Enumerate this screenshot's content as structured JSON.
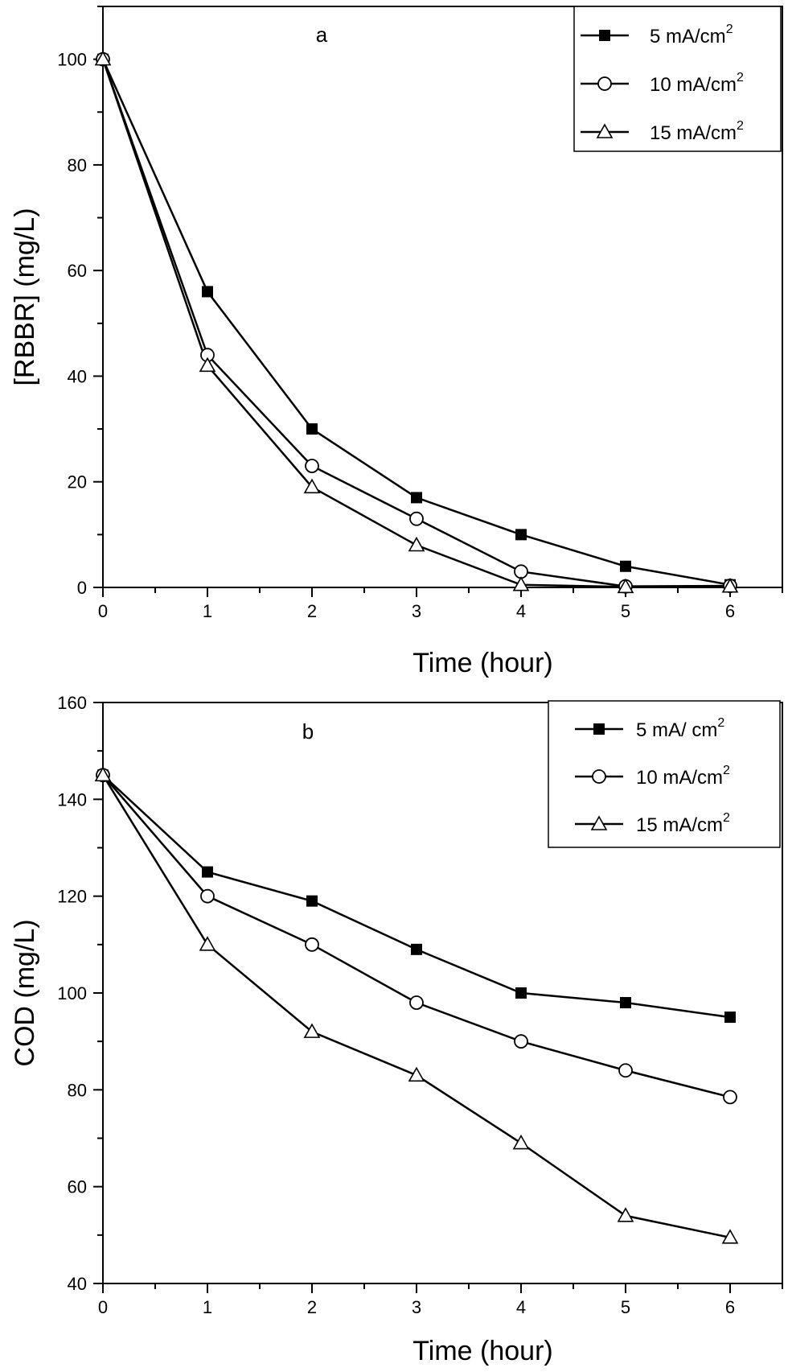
{
  "chart_data": [
    {
      "type": "line",
      "panel_label": "a",
      "xlabel": "Time (hour)",
      "ylabel": "[RBBR] (mg/L)",
      "x": [
        0,
        1,
        2,
        3,
        4,
        5,
        6
      ],
      "xlim": [
        0,
        6.5
      ],
      "ylim": [
        0,
        110
      ],
      "xticks": [
        0,
        1,
        2,
        3,
        4,
        5,
        6
      ],
      "yticks": [
        0,
        20,
        40,
        60,
        80,
        100
      ],
      "grid": false,
      "legend_position": "top-right",
      "series": [
        {
          "name": "5 mA/cm",
          "sup": "2",
          "marker": "filled-square",
          "values": [
            100,
            56,
            30,
            17,
            10,
            4,
            0.5
          ]
        },
        {
          "name": "10 mA/cm",
          "sup": "2",
          "marker": "open-circle",
          "values": [
            100,
            44,
            23,
            13,
            3,
            0.2,
            0.3
          ]
        },
        {
          "name": "15 mA/cm",
          "sup": "2",
          "marker": "open-triangle",
          "values": [
            100,
            42,
            19,
            8,
            0.5,
            0.1,
            0.2
          ]
        }
      ]
    },
    {
      "type": "line",
      "panel_label": "b",
      "xlabel": "Time (hour)",
      "ylabel": "COD (mg/L)",
      "x": [
        0,
        1,
        2,
        3,
        4,
        5,
        6
      ],
      "xlim": [
        0,
        6.5
      ],
      "ylim": [
        40,
        160
      ],
      "xticks": [
        0,
        1,
        2,
        3,
        4,
        5,
        6
      ],
      "yticks": [
        40,
        60,
        80,
        100,
        120,
        140,
        160
      ],
      "grid": false,
      "legend_position": "top-right",
      "series": [
        {
          "name": "5 mA/ cm",
          "sup": "2",
          "marker": "filled-square",
          "values": [
            145,
            125,
            119,
            109,
            100,
            98,
            95
          ]
        },
        {
          "name": "10 mA/cm",
          "sup": "2",
          "marker": "open-circle",
          "values": [
            145,
            120,
            110,
            98,
            90,
            84,
            78.5
          ]
        },
        {
          "name": "15 mA/cm",
          "sup": "2",
          "marker": "open-triangle",
          "values": [
            145,
            110,
            92,
            83,
            69,
            54,
            49.5
          ]
        }
      ]
    }
  ]
}
